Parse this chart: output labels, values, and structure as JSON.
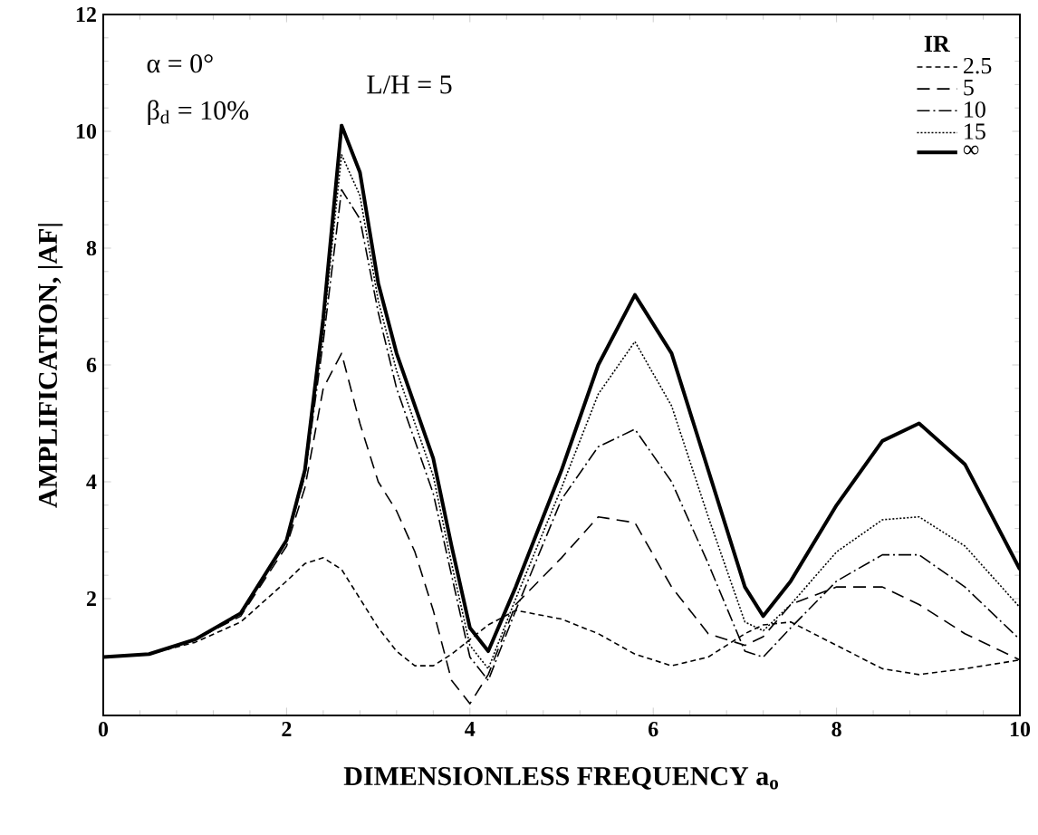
{
  "chart_data": {
    "type": "line",
    "xlabel": "DIMENSIONLESS FREQUENCY a$_{o}$",
    "ylabel": "AMPLIFICATION,  |AF|",
    "legend_title": "IR",
    "annotations": [
      "α = 0°",
      "β$_{d}$ = 10%",
      "L/H = 5"
    ],
    "x": [
      0,
      0.5,
      1,
      1.5,
      2,
      2.2,
      2.4,
      2.6,
      2.8,
      3.0,
      3.2,
      3.4,
      3.6,
      3.8,
      4.0,
      4.2,
      4.5,
      5.0,
      5.4,
      5.8,
      6.2,
      6.6,
      7.0,
      7.2,
      7.5,
      8.0,
      8.5,
      8.9,
      9.4,
      10
    ],
    "series": [
      {
        "name": "2.5",
        "color": "#000000",
        "line_style": "dashed",
        "values": [
          1,
          1.05,
          1.25,
          1.6,
          2.3,
          2.6,
          2.7,
          2.5,
          2.0,
          1.5,
          1.1,
          0.85,
          0.85,
          1.05,
          1.3,
          1.55,
          1.8,
          1.65,
          1.4,
          1.05,
          0.85,
          1.0,
          1.4,
          1.55,
          1.6,
          1.2,
          0.8,
          0.7,
          0.8,
          0.95
        ]
      },
      {
        "name": "5",
        "color": "#000000",
        "line_style": "longdashed",
        "values": [
          1,
          1.05,
          1.3,
          1.7,
          2.9,
          3.9,
          5.6,
          6.2,
          5.0,
          4.0,
          3.5,
          2.8,
          1.8,
          0.6,
          0.2,
          0.7,
          1.9,
          2.7,
          3.4,
          3.3,
          2.2,
          1.4,
          1.2,
          1.35,
          1.9,
          2.2,
          2.2,
          1.9,
          1.4,
          0.95
        ]
      },
      {
        "name": "10",
        "color": "#000000",
        "line_style": "dashdot",
        "values": [
          1,
          1.05,
          1.3,
          1.75,
          3.0,
          4.1,
          6.4,
          9.0,
          8.5,
          6.9,
          5.6,
          4.7,
          3.8,
          2.4,
          1.0,
          0.6,
          1.8,
          3.7,
          4.6,
          4.9,
          4.0,
          2.6,
          1.1,
          1.0,
          1.5,
          2.3,
          2.75,
          2.75,
          2.2,
          1.3
        ]
      },
      {
        "name": "15",
        "color": "#000000",
        "line_style": "dotted",
        "values": [
          1,
          1.05,
          1.3,
          1.75,
          3.0,
          4.15,
          6.6,
          9.6,
          8.9,
          7.1,
          5.9,
          5.0,
          4.1,
          2.6,
          1.2,
          0.8,
          2.0,
          3.9,
          5.5,
          6.4,
          5.3,
          3.4,
          1.6,
          1.45,
          1.9,
          2.8,
          3.35,
          3.4,
          2.9,
          1.85
        ]
      },
      {
        "name": "∞",
        "color": "#000000",
        "line_style": "solid",
        "values": [
          1,
          1.05,
          1.3,
          1.75,
          3.0,
          4.2,
          6.8,
          10.1,
          9.3,
          7.4,
          6.2,
          5.3,
          4.4,
          2.9,
          1.5,
          1.1,
          2.2,
          4.2,
          6.0,
          7.2,
          6.2,
          4.2,
          2.2,
          1.7,
          2.3,
          3.6,
          4.7,
          5.0,
          4.3,
          2.5
        ]
      }
    ],
    "xlim": [
      0,
      10
    ],
    "ylim": [
      0,
      12
    ],
    "xticks": [
      0,
      2,
      4,
      6,
      8,
      10
    ],
    "yticks": [
      2,
      4,
      6,
      8,
      10,
      12
    ],
    "legend": "top right",
    "grid": false
  }
}
